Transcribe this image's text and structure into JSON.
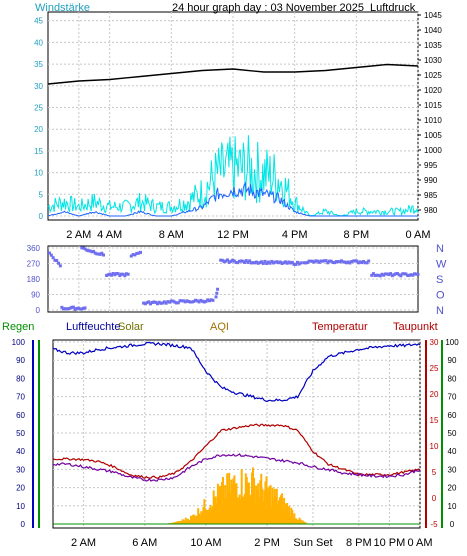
{
  "header": {
    "title": "24 hour graph day : 03 November 2025",
    "left_label": "Windstärke",
    "right_label": "Luftdruck"
  },
  "colors": {
    "wind": "#00e5e5",
    "wind_avg": "#1e66ff",
    "pressure": "#000000",
    "direction": "#6f6ff0",
    "humidity": "#0000c0",
    "temperature": "#b00000",
    "dewpoint": "#7000a0",
    "solar": "#ffb000",
    "rain": "#009000",
    "grid": "#c8c8c8"
  },
  "legend": {
    "rain": "Regen",
    "humidity": "Luftfeuchte",
    "solar": "Solar",
    "aqi": "AQI",
    "temperature": "Temperatur",
    "dewpoint": "Taupunkt"
  },
  "chart_data": [
    {
      "type": "line",
      "name": "wind-pressure",
      "x_ticks": [
        "2 AM",
        "4 AM",
        "8 AM",
        "12 PM",
        "4 PM",
        "8 PM",
        "0 AM"
      ],
      "x_tick_hours": [
        2,
        4,
        8,
        12,
        16,
        20,
        24
      ],
      "y_left_label": "Windstärke",
      "y_left_ticks": [
        0,
        5,
        10,
        15,
        20,
        25,
        30,
        35,
        40,
        45
      ],
      "y_left_lim": [
        0,
        47
      ],
      "y_right_label": "Luftdruck",
      "y_right_ticks": [
        980,
        985,
        990,
        995,
        1000,
        1005,
        1010,
        1015,
        1020,
        1025,
        1030,
        1035,
        1040,
        1045
      ],
      "y_right_lim": [
        978,
        1046
      ],
      "series": [
        {
          "axis": "right",
          "x": [
            0,
            2,
            4,
            6,
            8,
            10,
            12,
            14,
            16,
            18,
            20,
            22,
            24
          ],
          "y": [
            1022,
            1023,
            1023.5,
            1024.5,
            1025.5,
            1026.5,
            1027,
            1026,
            1026,
            1026.5,
            1027.5,
            1028.5,
            1028
          ]
        },
        {
          "axis": "left",
          "x": [
            0,
            1,
            2,
            3,
            4,
            5,
            6,
            7,
            8,
            9,
            10,
            11,
            12,
            13,
            14,
            15,
            16,
            17,
            18,
            19,
            20,
            21,
            22,
            23,
            24
          ],
          "y": [
            2,
            3,
            2,
            3,
            2,
            2,
            3,
            2,
            2,
            3,
            5,
            9,
            10,
            10,
            9,
            8,
            3,
            0,
            1,
            0,
            1,
            1,
            1,
            1,
            2
          ]
        },
        {
          "axis": "left",
          "x": [
            0,
            1,
            2,
            3,
            4,
            5,
            6,
            7,
            8,
            9,
            10,
            11,
            12,
            13,
            14,
            15,
            16,
            17,
            18,
            19,
            20,
            21,
            22,
            23,
            24
          ],
          "y": [
            0,
            1,
            0,
            1,
            0,
            0,
            1,
            0,
            0,
            1,
            2,
            5,
            6,
            6,
            5,
            4,
            1,
            0,
            0,
            0,
            0,
            0,
            0,
            0,
            0
          ]
        }
      ]
    },
    {
      "type": "scatter",
      "name": "wind-direction",
      "y_ticks": [
        0,
        90,
        180,
        270,
        360
      ],
      "y_lim": [
        0,
        360
      ],
      "direction_labels": [
        "N",
        "W",
        "S",
        "O",
        "N"
      ],
      "segments": [
        {
          "x": [
            0.1,
            0.8
          ],
          "y": [
            330,
            260
          ]
        },
        {
          "x": [
            2.2,
            3.6
          ],
          "y": [
            360,
            320
          ]
        },
        {
          "x": [
            3.8,
            5.2
          ],
          "y": [
            205,
            205
          ]
        },
        {
          "x": [
            5.4,
            6.0
          ],
          "y": [
            310,
            340
          ]
        },
        {
          "x": [
            0.9,
            2.4
          ],
          "y": [
            10,
            10
          ]
        },
        {
          "x": [
            6.2,
            10.7
          ],
          "y": [
            40,
            55
          ]
        },
        {
          "x": [
            10.9,
            11.0
          ],
          "y": [
            70,
            115
          ]
        },
        {
          "x": [
            11.2,
            16.4
          ],
          "y": [
            285,
            270
          ]
        },
        {
          "x": [
            16.6,
            20.8
          ],
          "y": [
            280,
            280
          ]
        },
        {
          "x": [
            21.0,
            24.0
          ],
          "y": [
            205,
            205
          ]
        }
      ]
    },
    {
      "type": "line",
      "name": "humidity-temperature-solar",
      "x_ticks": [
        "2 AM",
        "6 AM",
        "10 AM",
        "2 PM",
        "Sun Set",
        "8 PM",
        "10 PM",
        "0 AM"
      ],
      "x_tick_hours": [
        2,
        6,
        10,
        14,
        17,
        20,
        22,
        24
      ],
      "y_left_ticks": [
        0,
        10,
        20,
        30,
        40,
        50,
        60,
        70,
        80,
        90,
        100
      ],
      "y_left_lim": [
        0,
        100
      ],
      "y_right1_ticks": [
        -5,
        0,
        5,
        10,
        15,
        20,
        25,
        30
      ],
      "y_right1_lim": [
        -5,
        30
      ],
      "y_right2_ticks": [
        0,
        10,
        20,
        30,
        40,
        50,
        60,
        70,
        80,
        90,
        100
      ],
      "series": [
        {
          "key": "humidity",
          "axis": "left",
          "x": [
            0,
            1,
            2,
            3,
            4,
            5,
            6,
            7,
            8,
            9,
            10,
            11,
            12,
            13,
            14,
            15,
            16,
            17,
            18,
            19,
            20,
            21,
            22,
            23,
            24
          ],
          "y": [
            96,
            94,
            94,
            96,
            97,
            98,
            99,
            99,
            98,
            97,
            84,
            75,
            72,
            70,
            68,
            68,
            70,
            84,
            92,
            94,
            96,
            97,
            98,
            98,
            99
          ]
        },
        {
          "key": "temperature",
          "axis": "right1",
          "x": [
            0,
            1,
            2,
            3,
            4,
            5,
            6,
            7,
            8,
            9,
            10,
            11,
            12,
            13,
            14,
            15,
            16,
            17,
            18,
            19,
            20,
            21,
            22,
            23,
            24
          ],
          "y": [
            7.5,
            7.5,
            7.4,
            7,
            6,
            4.5,
            4,
            4,
            4.8,
            7,
            10,
            13,
            13.5,
            14,
            14,
            14,
            13,
            9,
            6.5,
            5.5,
            4.5,
            4.5,
            4.5,
            5,
            5.5
          ]
        },
        {
          "key": "dewpoint",
          "axis": "right1",
          "x": [
            0,
            1,
            2,
            3,
            4,
            5,
            6,
            7,
            8,
            9,
            10,
            11,
            12,
            13,
            14,
            15,
            16,
            17,
            18,
            19,
            20,
            21,
            22,
            23,
            24
          ],
          "y": [
            6.5,
            6.5,
            6,
            5.5,
            5,
            4,
            3.5,
            3.5,
            4,
            6,
            7.5,
            8.3,
            8.3,
            8,
            7.6,
            7.2,
            6.8,
            6,
            5.5,
            4.8,
            4.5,
            4.2,
            4.2,
            4.5,
            5.5
          ]
        },
        {
          "key": "solar",
          "axis": "left",
          "x": [
            7.2,
            8,
            9,
            10,
            11,
            12,
            13,
            14,
            15,
            16,
            16.6
          ],
          "y": [
            0,
            1,
            4,
            12,
            20,
            25,
            25,
            20,
            13,
            3,
            0
          ]
        },
        {
          "key": "rain",
          "axis": "left",
          "x": [
            0,
            24
          ],
          "y": [
            0,
            0
          ]
        }
      ]
    }
  ]
}
